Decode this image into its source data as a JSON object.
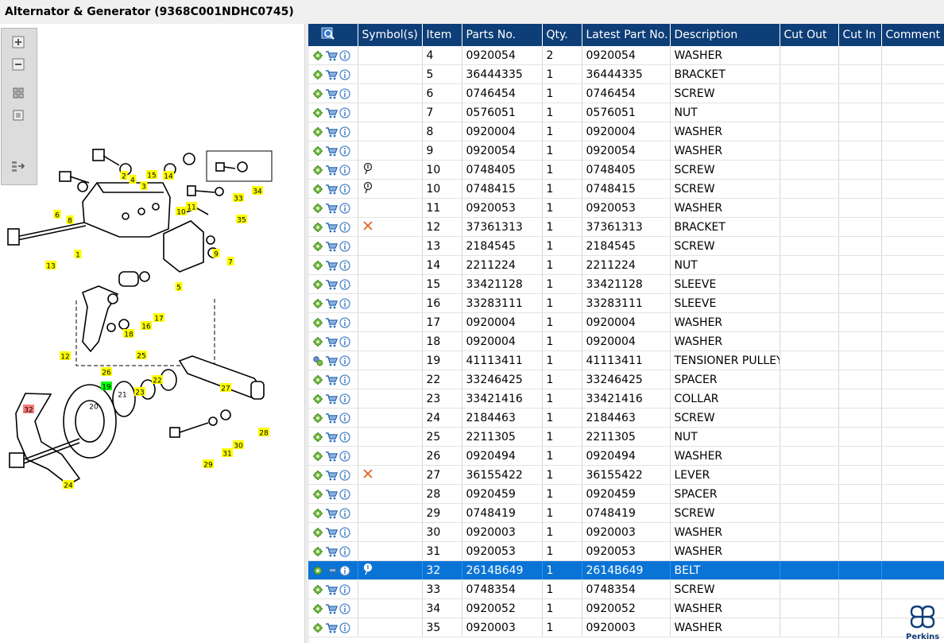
{
  "title": "Alternator & Generator (9368C001NDHC0745)",
  "toolbar": [
    "zoom-in-icon",
    "zoom-out-icon",
    "fit-window-icon",
    "actual-size-icon",
    "split-view-icon"
  ],
  "diagram": {
    "callouts": [
      "1",
      "2",
      "4",
      "3",
      "15",
      "14",
      "33",
      "34",
      "6",
      "8",
      "11",
      "10",
      "35",
      "13",
      "9",
      "7",
      "5",
      "16",
      "17",
      "18",
      "12",
      "25",
      "26",
      "19",
      "21",
      "22",
      "23",
      "27",
      "20",
      "32",
      "28",
      "30",
      "31",
      "29",
      "24"
    ],
    "highlight_color": "#ffff00",
    "selected_color": "#ff7a7a",
    "green_color": "#00ff00"
  },
  "grid": {
    "columns": [
      "",
      "Symbol(s)",
      "Item",
      "Parts No.",
      "Qty.",
      "Latest Part No.",
      "Description",
      "Cut Out",
      "Cut In",
      "Comment"
    ],
    "rows": [
      {
        "item": "4",
        "part": "0920054",
        "qty": "2",
        "latest": "0920054",
        "desc": "WASHER",
        "symbol": ""
      },
      {
        "item": "5",
        "part": "36444335",
        "qty": "1",
        "latest": "36444335",
        "desc": "BRACKET",
        "symbol": ""
      },
      {
        "item": "6",
        "part": "0746454",
        "qty": "1",
        "latest": "0746454",
        "desc": "SCREW",
        "symbol": ""
      },
      {
        "item": "7",
        "part": "0576051",
        "qty": "1",
        "latest": "0576051",
        "desc": "NUT",
        "symbol": ""
      },
      {
        "item": "8",
        "part": "0920004",
        "qty": "1",
        "latest": "0920004",
        "desc": "WASHER",
        "symbol": ""
      },
      {
        "item": "9",
        "part": "0920054",
        "qty": "1",
        "latest": "0920054",
        "desc": "WASHER",
        "symbol": ""
      },
      {
        "item": "10",
        "part": "0748405",
        "qty": "1",
        "latest": "0748405",
        "desc": "SCREW",
        "symbol": "pin"
      },
      {
        "item": "10",
        "part": "0748415",
        "qty": "1",
        "latest": "0748415",
        "desc": "SCREW",
        "symbol": "pin"
      },
      {
        "item": "11",
        "part": "0920053",
        "qty": "1",
        "latest": "0920053",
        "desc": "WASHER",
        "symbol": ""
      },
      {
        "item": "12",
        "part": "37361313",
        "qty": "1",
        "latest": "37361313",
        "desc": "BRACKET",
        "symbol": "x"
      },
      {
        "item": "13",
        "part": "2184545",
        "qty": "1",
        "latest": "2184545",
        "desc": "SCREW",
        "symbol": ""
      },
      {
        "item": "14",
        "part": "2211224",
        "qty": "1",
        "latest": "2211224",
        "desc": "NUT",
        "symbol": ""
      },
      {
        "item": "15",
        "part": "33421128",
        "qty": "1",
        "latest": "33421128",
        "desc": "SLEEVE",
        "symbol": ""
      },
      {
        "item": "16",
        "part": "33283111",
        "qty": "1",
        "latest": "33283111",
        "desc": "SLEEVE",
        "symbol": ""
      },
      {
        "item": "17",
        "part": "0920004",
        "qty": "1",
        "latest": "0920004",
        "desc": "WASHER",
        "symbol": ""
      },
      {
        "item": "18",
        "part": "0920004",
        "qty": "1",
        "latest": "0920004",
        "desc": "WASHER",
        "symbol": ""
      },
      {
        "item": "19",
        "part": "41113411",
        "qty": "1",
        "latest": "41113411",
        "desc": "TENSIONER PULLEY",
        "symbol": "",
        "settings_icon": "gears"
      },
      {
        "item": "22",
        "part": "33246425",
        "qty": "1",
        "latest": "33246425",
        "desc": "SPACER",
        "symbol": ""
      },
      {
        "item": "23",
        "part": "33421416",
        "qty": "1",
        "latest": "33421416",
        "desc": "COLLAR",
        "symbol": ""
      },
      {
        "item": "24",
        "part": "2184463",
        "qty": "1",
        "latest": "2184463",
        "desc": "SCREW",
        "symbol": ""
      },
      {
        "item": "25",
        "part": "2211305",
        "qty": "1",
        "latest": "2211305",
        "desc": "NUT",
        "symbol": ""
      },
      {
        "item": "26",
        "part": "0920494",
        "qty": "1",
        "latest": "0920494",
        "desc": "WASHER",
        "symbol": ""
      },
      {
        "item": "27",
        "part": "36155422",
        "qty": "1",
        "latest": "36155422",
        "desc": "LEVER",
        "symbol": "x"
      },
      {
        "item": "28",
        "part": "0920459",
        "qty": "1",
        "latest": "0920459",
        "desc": "SPACER",
        "symbol": ""
      },
      {
        "item": "29",
        "part": "0748419",
        "qty": "1",
        "latest": "0748419",
        "desc": "SCREW",
        "symbol": ""
      },
      {
        "item": "30",
        "part": "0920003",
        "qty": "1",
        "latest": "0920003",
        "desc": "WASHER",
        "symbol": ""
      },
      {
        "item": "31",
        "part": "0920053",
        "qty": "1",
        "latest": "0920053",
        "desc": "WASHER",
        "symbol": ""
      },
      {
        "item": "32",
        "part": "2614B649",
        "qty": "1",
        "latest": "2614B649",
        "desc": "BELT",
        "symbol": "pin",
        "selected": true
      },
      {
        "item": "33",
        "part": "0748354",
        "qty": "1",
        "latest": "0748354",
        "desc": "SCREW",
        "symbol": ""
      },
      {
        "item": "34",
        "part": "0920052",
        "qty": "1",
        "latest": "0920052",
        "desc": "WASHER",
        "symbol": ""
      },
      {
        "item": "35",
        "part": "0920003",
        "qty": "1",
        "latest": "0920003",
        "desc": "WASHER",
        "symbol": ""
      }
    ]
  },
  "brand": {
    "name": "Perkins",
    "color": "#0e3e77"
  }
}
